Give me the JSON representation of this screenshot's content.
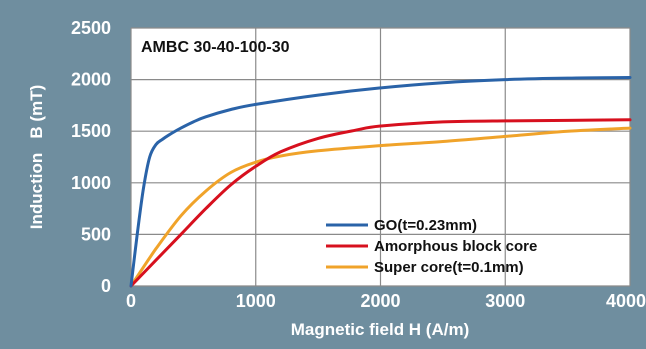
{
  "chart_data": {
    "type": "line",
    "title": "AMBC 30-40-100-30",
    "xlabel": "Magnetic field H (A/m)",
    "ylabel": "Induction   B (mT)",
    "xlim": [
      0,
      4000
    ],
    "ylim": [
      0,
      2500
    ],
    "xticks": [
      0,
      1000,
      2000,
      3000,
      4000
    ],
    "yticks": [
      0,
      500,
      1000,
      1500,
      2000,
      2500
    ],
    "xtick_labels": [
      "0",
      "1000",
      "2000",
      "3000",
      "4000"
    ],
    "ytick_labels": [
      "0",
      "500",
      "1000",
      "1500",
      "2000",
      "2500"
    ],
    "grid": true,
    "legend_position": "bottom-right",
    "series": [
      {
        "name": "GO(t=0.23mm)",
        "color": "#2a63a8",
        "x": [
          0,
          50,
          100,
          150,
          200,
          250,
          300,
          400,
          500,
          600,
          800,
          1000,
          1500,
          2000,
          2500,
          3000,
          3500,
          4000
        ],
        "y": [
          0,
          500,
          950,
          1250,
          1370,
          1420,
          1460,
          1530,
          1590,
          1640,
          1710,
          1760,
          1850,
          1920,
          1970,
          2000,
          2015,
          2020
        ]
      },
      {
        "name": "Amorphous block core",
        "color": "#d7101e",
        "x": [
          0,
          200,
          400,
          600,
          800,
          1000,
          1200,
          1500,
          1800,
          2000,
          2500,
          3000,
          3500,
          4000
        ],
        "y": [
          0,
          250,
          500,
          750,
          980,
          1160,
          1300,
          1430,
          1510,
          1550,
          1590,
          1600,
          1605,
          1610
        ]
      },
      {
        "name": "Super core(t=0.1mm)",
        "color": "#f0a32a",
        "x": [
          0,
          200,
          400,
          600,
          800,
          1000,
          1200,
          1500,
          2000,
          2500,
          3000,
          3500,
          4000
        ],
        "y": [
          0,
          360,
          680,
          920,
          1100,
          1200,
          1260,
          1310,
          1360,
          1400,
          1450,
          1500,
          1530
        ]
      }
    ]
  }
}
